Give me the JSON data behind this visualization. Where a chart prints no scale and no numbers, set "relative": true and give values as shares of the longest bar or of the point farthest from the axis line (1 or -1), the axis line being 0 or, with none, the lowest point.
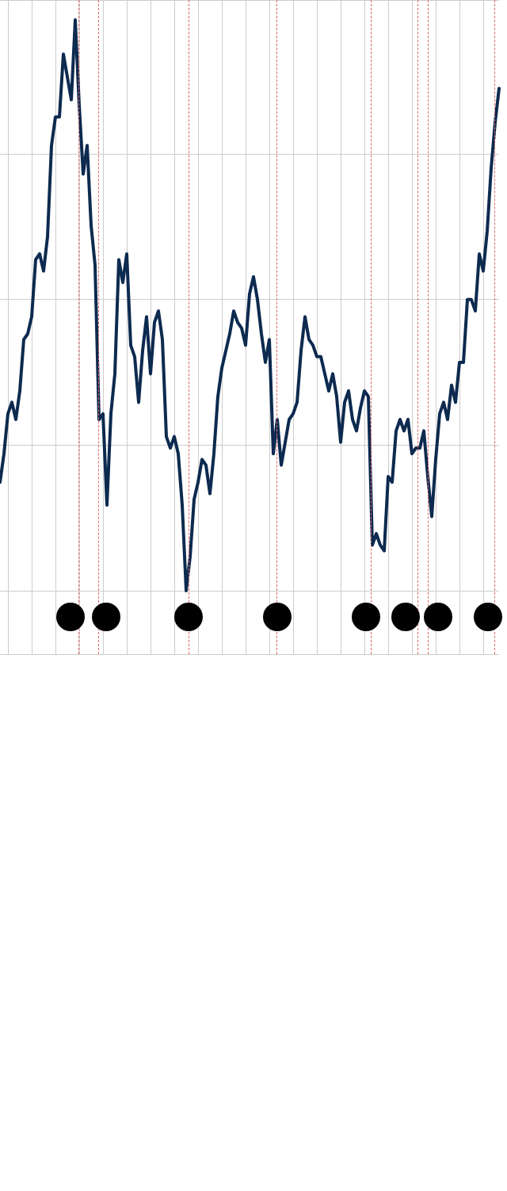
{
  "chart_data": {
    "type": "line",
    "relative": true,
    "grid": true,
    "legend": false,
    "tick_labels": false,
    "line_style": "solid",
    "marker": "none",
    "categories": [
      null,
      null,
      null,
      null,
      null,
      null,
      null,
      null,
      null,
      null,
      null,
      null,
      null,
      null,
      null,
      null,
      null,
      null,
      null,
      null,
      null,
      null,
      null,
      null,
      null,
      null,
      null,
      null,
      null,
      null,
      null,
      null,
      null,
      null,
      null,
      null,
      null,
      null,
      null,
      null,
      null,
      null,
      null,
      null,
      null,
      null,
      null,
      null,
      null,
      null,
      null,
      null,
      null,
      null,
      null,
      null,
      null,
      null,
      null,
      null,
      null,
      null,
      null,
      null,
      null,
      null,
      null,
      null,
      null,
      null,
      null,
      null,
      null,
      null,
      null,
      null,
      null,
      null,
      null,
      null,
      null,
      null,
      null,
      null,
      null,
      null,
      null,
      null,
      null,
      null,
      null,
      null,
      null,
      null,
      null,
      null,
      null,
      null,
      null,
      null,
      null,
      null,
      null,
      null,
      null,
      null,
      null,
      null,
      null,
      null,
      null,
      null,
      null,
      null,
      null,
      null,
      null,
      null,
      null,
      null,
      null,
      null,
      null,
      null,
      null,
      null,
      null
    ],
    "series": [
      {
        "color": "#0d2a4f",
        "values": [
          0.19,
          0.24,
          0.31,
          0.33,
          0.3,
          0.35,
          0.44,
          0.45,
          0.48,
          0.58,
          0.59,
          0.56,
          0.62,
          0.78,
          0.83,
          0.83,
          0.94,
          0.9,
          0.86,
          1.0,
          0.85,
          0.73,
          0.78,
          0.64,
          0.57,
          0.3,
          0.31,
          0.15,
          0.31,
          0.38,
          0.58,
          0.54,
          0.59,
          0.43,
          0.41,
          0.33,
          0.42,
          0.48,
          0.38,
          0.47,
          0.49,
          0.44,
          0.27,
          0.25,
          0.27,
          0.24,
          0.15,
          0.0,
          0.06,
          0.16,
          0.19,
          0.23,
          0.22,
          0.17,
          0.24,
          0.34,
          0.39,
          0.42,
          0.45,
          0.49,
          0.47,
          0.46,
          0.43,
          0.52,
          0.55,
          0.51,
          0.45,
          0.4,
          0.44,
          0.24,
          0.3,
          0.22,
          0.26,
          0.3,
          0.31,
          0.33,
          0.42,
          0.48,
          0.44,
          0.43,
          0.41,
          0.41,
          0.38,
          0.35,
          0.38,
          0.34,
          0.26,
          0.33,
          0.35,
          0.3,
          0.28,
          0.32,
          0.35,
          0.34,
          0.08,
          0.1,
          0.08,
          0.07,
          0.2,
          0.19,
          0.28,
          0.3,
          0.28,
          0.3,
          0.24,
          0.25,
          0.25,
          0.28,
          0.2,
          0.13,
          0.23,
          0.31,
          0.33,
          0.3,
          0.36,
          0.33,
          0.4,
          0.4,
          0.51,
          0.51,
          0.49,
          0.59,
          0.56,
          0.63,
          0.74,
          0.82,
          0.88
        ]
      }
    ]
  }
}
